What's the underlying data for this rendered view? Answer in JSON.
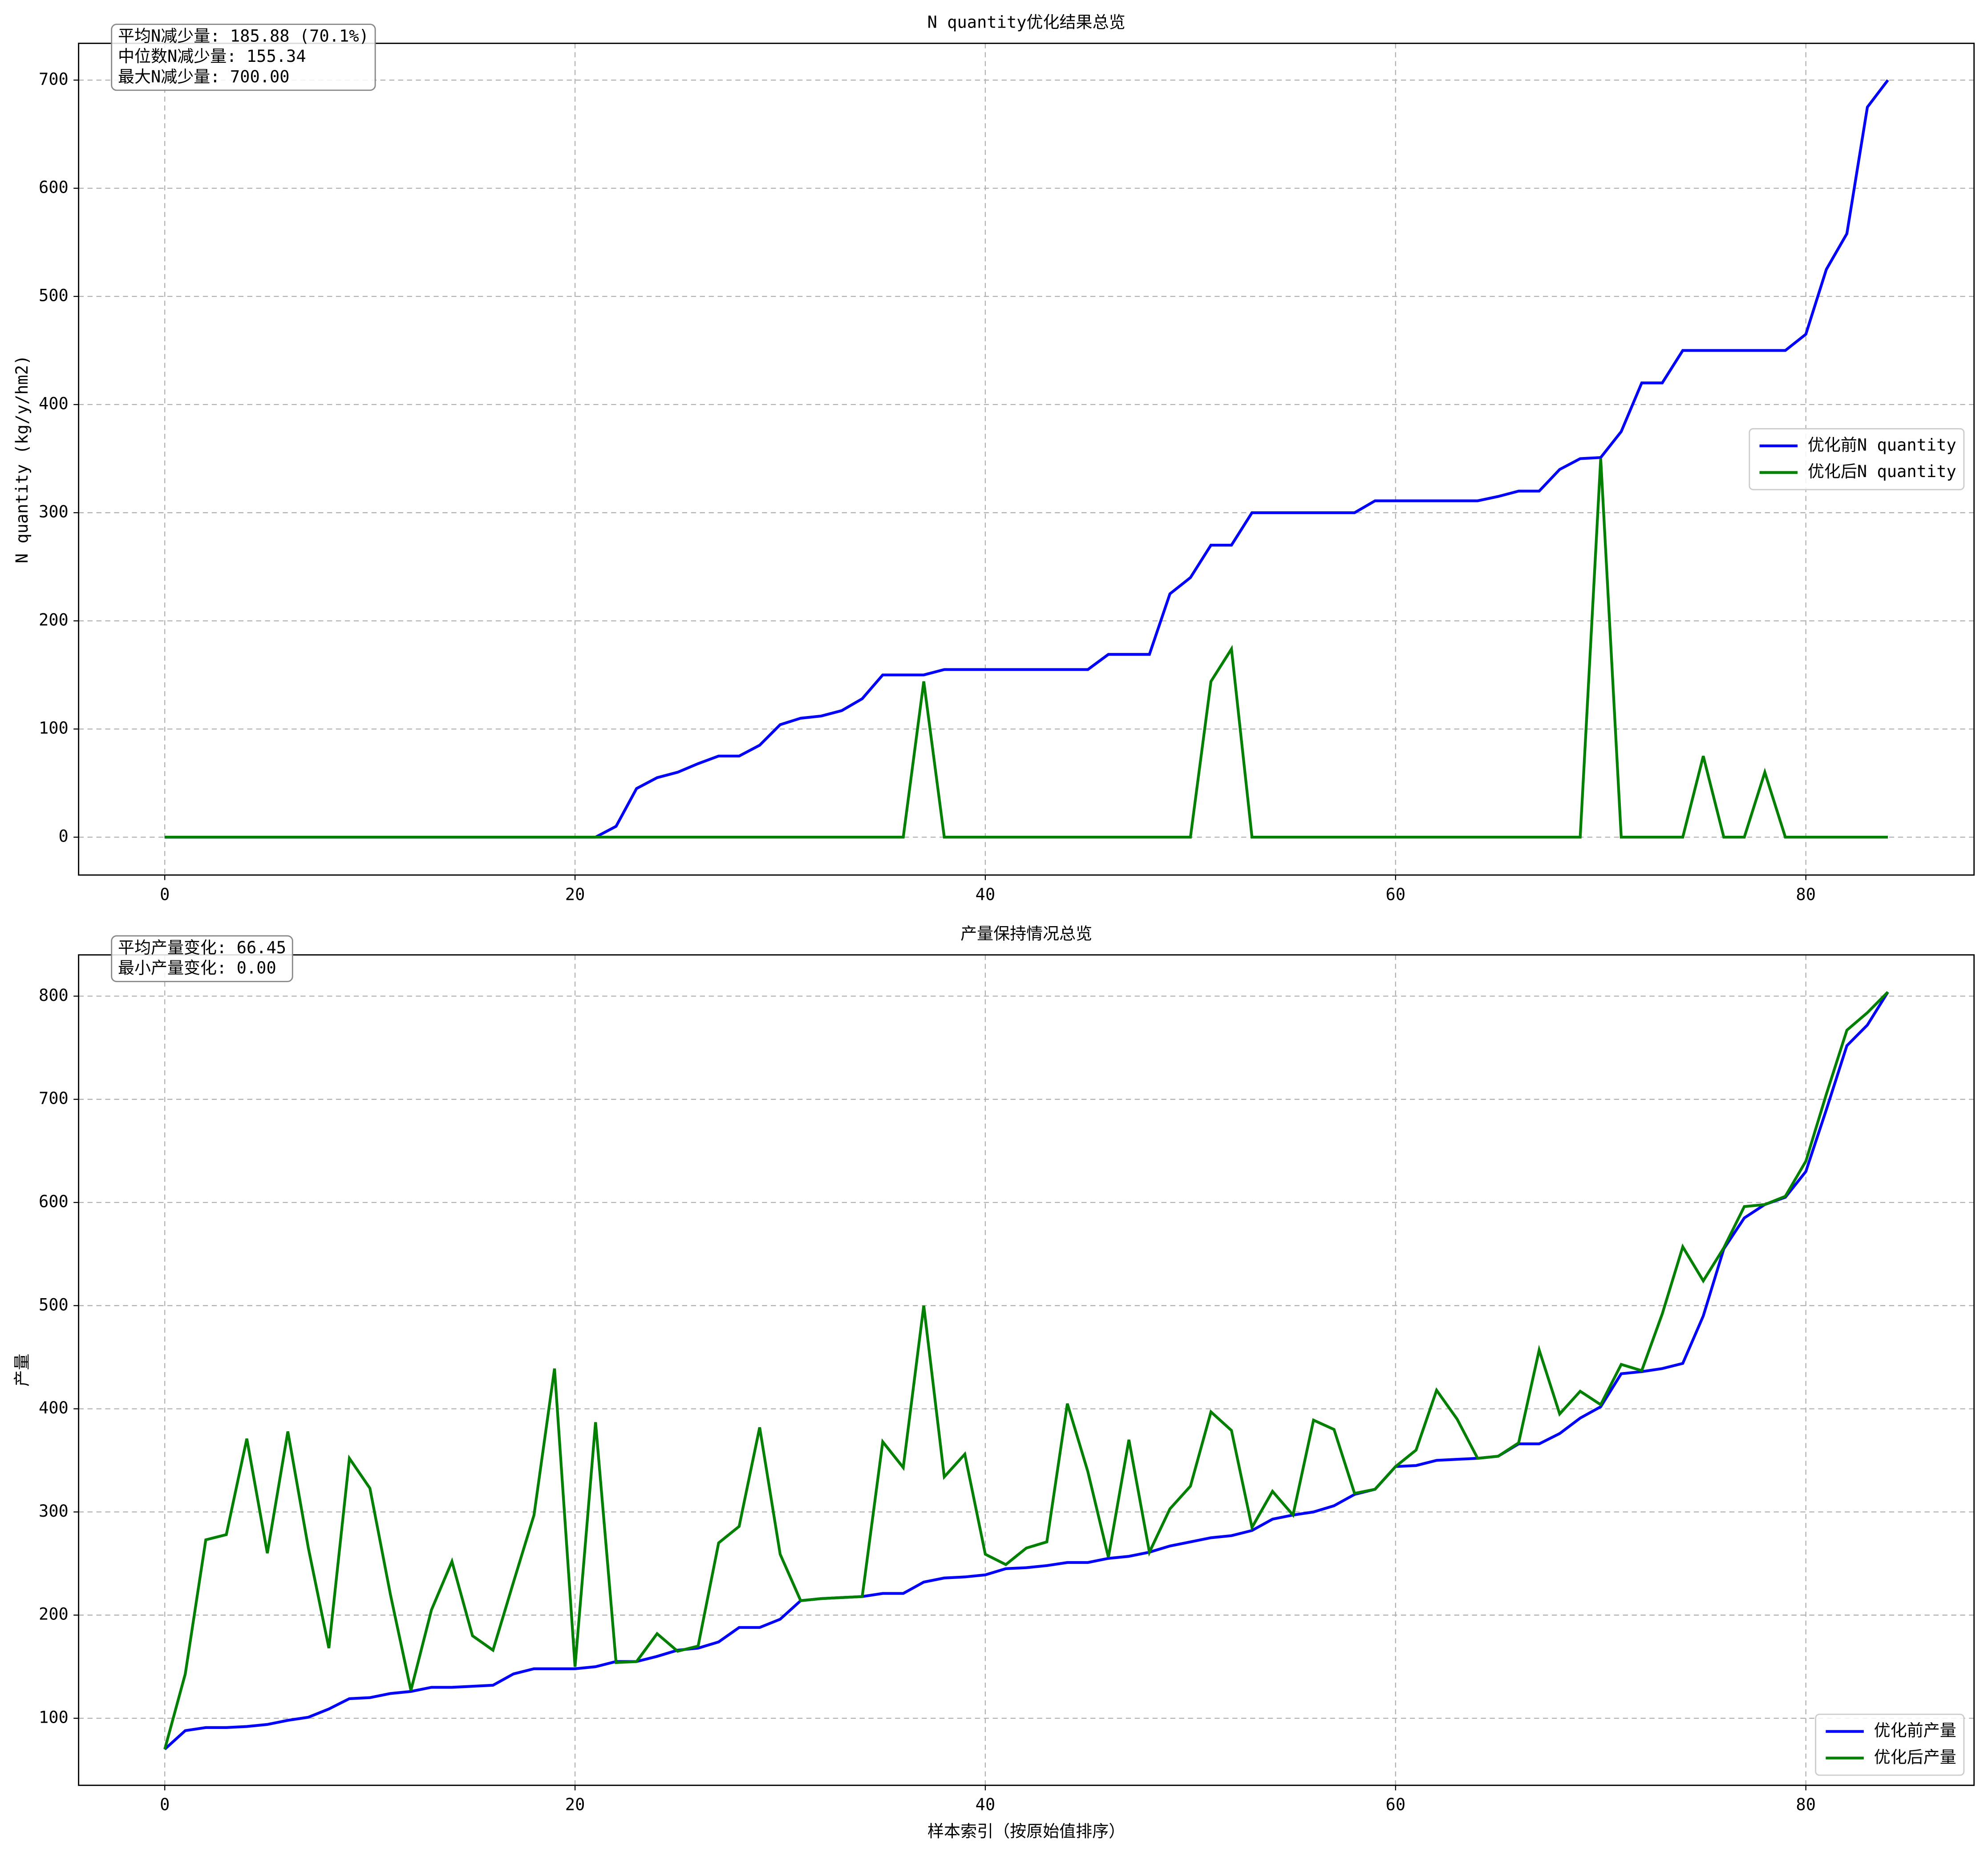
{
  "chart_data": [
    {
      "type": "line",
      "title": "N quantity优化结果总览",
      "ylabel": "N quantity (kg/y/hm2)",
      "x": [
        0,
        1,
        2,
        3,
        4,
        5,
        6,
        7,
        8,
        9,
        10,
        11,
        12,
        13,
        14,
        15,
        16,
        17,
        18,
        19,
        20,
        21,
        22,
        23,
        24,
        25,
        26,
        27,
        28,
        29,
        30,
        31,
        32,
        33,
        34,
        35,
        36,
        37,
        38,
        39,
        40,
        41,
        42,
        43,
        44,
        45,
        46,
        47,
        48,
        49,
        50,
        51,
        52,
        53,
        54,
        55,
        56,
        57,
        58,
        59,
        60,
        61,
        62,
        63,
        64,
        65,
        66,
        67,
        68,
        69,
        70,
        71,
        72,
        73,
        74,
        75,
        76,
        77,
        78,
        79,
        80,
        81,
        82,
        83,
        84
      ],
      "series": [
        {
          "name": "优化前N quantity",
          "color": "#0000ff",
          "values": [
            0,
            0,
            0,
            0,
            0,
            0,
            0,
            0,
            0,
            0,
            0,
            0,
            0,
            0,
            0,
            0,
            0,
            0,
            0,
            0,
            0,
            0,
            10,
            45,
            55,
            60,
            68,
            75,
            75,
            85,
            104,
            110,
            112,
            117,
            128,
            150,
            150,
            150,
            155,
            155,
            155,
            155,
            155,
            155,
            155,
            155,
            169,
            169,
            169,
            225,
            240,
            270,
            270,
            300,
            300,
            300,
            300,
            300,
            300,
            311,
            311,
            311,
            311,
            311,
            311,
            315,
            320,
            320,
            340,
            350,
            351,
            375,
            420,
            420,
            450,
            450,
            450,
            450,
            450,
            450,
            465,
            525,
            558,
            675,
            700
          ]
        },
        {
          "name": "优化后N quantity",
          "color": "#008000",
          "values": [
            0,
            0,
            0,
            0,
            0,
            0,
            0,
            0,
            0,
            0,
            0,
            0,
            0,
            0,
            0,
            0,
            0,
            0,
            0,
            0,
            0,
            0,
            0,
            0,
            0,
            0,
            0,
            0,
            0,
            0,
            0,
            0,
            0,
            0,
            0,
            0,
            0,
            144,
            0,
            0,
            0,
            0,
            0,
            0,
            0,
            0,
            0,
            0,
            0,
            0,
            0,
            144,
            174,
            0,
            0,
            0,
            0,
            0,
            0,
            0,
            0,
            0,
            0,
            0,
            0,
            0,
            0,
            0,
            0,
            0,
            350,
            0,
            0,
            0,
            0,
            75,
            0,
            0,
            60,
            0,
            0,
            0,
            0,
            0,
            0
          ]
        }
      ],
      "xlim": [
        -4.2,
        88.2
      ],
      "ylim": [
        -35,
        734
      ],
      "xticks": [
        0,
        20,
        40,
        60,
        80
      ],
      "yticks": [
        0,
        100,
        200,
        300,
        400,
        500,
        600,
        700
      ],
      "grid": true,
      "legend": "center right",
      "annotations": [
        "平均N减少量: 185.88 (70.1%)",
        "中位数N减少量: 155.34",
        "最大N减少量: 700.00"
      ]
    },
    {
      "type": "line",
      "title": "产量保持情况总览",
      "ylabel": "产量",
      "xlabel": "样本索引（按原始值排序）",
      "x": [
        0,
        1,
        2,
        3,
        4,
        5,
        6,
        7,
        8,
        9,
        10,
        11,
        12,
        13,
        14,
        15,
        16,
        17,
        18,
        19,
        20,
        21,
        22,
        23,
        24,
        25,
        26,
        27,
        28,
        29,
        30,
        31,
        32,
        33,
        34,
        35,
        36,
        37,
        38,
        39,
        40,
        41,
        42,
        43,
        44,
        45,
        46,
        47,
        48,
        49,
        50,
        51,
        52,
        53,
        54,
        55,
        56,
        57,
        58,
        59,
        60,
        61,
        62,
        63,
        64,
        65,
        66,
        67,
        68,
        69,
        70,
        71,
        72,
        73,
        74,
        75,
        76,
        77,
        78,
        79,
        80,
        81,
        82,
        83,
        84
      ],
      "series": [
        {
          "name": "优化前产量",
          "color": "#0000ff",
          "values": [
            70,
            88,
            91,
            91,
            92,
            94,
            98,
            101,
            109,
            119,
            120,
            124,
            126,
            130,
            130,
            131,
            132,
            143,
            148,
            148,
            148,
            150,
            155,
            155,
            160,
            166,
            168,
            174,
            188,
            188,
            196,
            214,
            216,
            217,
            218,
            221,
            221,
            232,
            236,
            237,
            239,
            245,
            246,
            248,
            251,
            251,
            255,
            257,
            261,
            267,
            271,
            275,
            277,
            282,
            293,
            297,
            300,
            306,
            317,
            322,
            344,
            345,
            350,
            351,
            352,
            354,
            366,
            366,
            376,
            391,
            402,
            434,
            436,
            439,
            444,
            490,
            555,
            585,
            598,
            605,
            630,
            690,
            752,
            772,
            804
          ]
        },
        {
          "name": "优化后产量",
          "color": "#008000",
          "values": [
            70,
            143,
            273,
            278,
            371,
            260,
            378,
            265,
            168,
            352,
            323,
            220,
            127,
            205,
            252,
            180,
            166,
            232,
            297,
            439,
            150,
            387,
            154,
            155,
            182,
            165,
            170,
            270,
            286,
            382,
            259,
            214,
            216,
            217,
            218,
            368,
            343,
            500,
            334,
            356,
            259,
            249,
            265,
            271,
            405,
            339,
            256,
            370,
            261,
            303,
            325,
            397,
            379,
            285,
            320,
            297,
            389,
            380,
            318,
            322,
            344,
            360,
            418,
            390,
            352,
            354,
            367,
            457,
            395,
            417,
            404,
            443,
            437,
            492,
            557,
            524,
            556,
            596,
            598,
            606,
            640,
            705,
            767,
            784,
            804
          ]
        }
      ],
      "xlim": [
        -4.2,
        88.2
      ],
      "ylim": [
        35,
        840
      ],
      "xticks": [
        0,
        20,
        40,
        60,
        80
      ],
      "yticks": [
        100,
        200,
        300,
        400,
        500,
        600,
        700,
        800
      ],
      "grid": true,
      "legend": "lower right",
      "annotations": [
        "平均产量变化: 66.45",
        "最小产量变化: 0.00"
      ]
    }
  ]
}
